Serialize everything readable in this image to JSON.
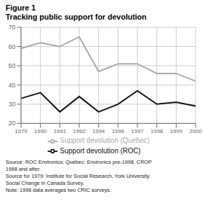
{
  "chart_data": {
    "type": "line",
    "title": "Figure 1",
    "subtitle": "Tracking public support for devolution",
    "categories": [
      "1979",
      "1990",
      "1991",
      "1992",
      "1994",
      "1996",
      "1997",
      "1998",
      "1999",
      "2000"
    ],
    "series": [
      {
        "name": "Support devolution (Quebec)",
        "color": "#aaaaaa",
        "values": [
          59,
          62,
          60,
          65,
          47,
          51,
          51,
          46,
          46,
          42
        ]
      },
      {
        "name": "Support devolution (ROC)",
        "color": "#111111",
        "values": [
          33,
          36,
          26,
          34,
          26,
          30,
          37,
          30,
          31,
          29
        ]
      }
    ],
    "ylim": [
      20,
      70
    ],
    "yticks": [
      20,
      30,
      40,
      50,
      60,
      70
    ],
    "grid": true,
    "legend": "bottom",
    "annotations": [
      "Source: ROC Environics; Quebec: Environics pre-1998, CROP\n1998 and after.\nSource for 1979: Institute for Social Research, York University.\nSocial Change in Canada Survey.\nNote:  1998 data averages two CRIC surveys."
    ]
  }
}
